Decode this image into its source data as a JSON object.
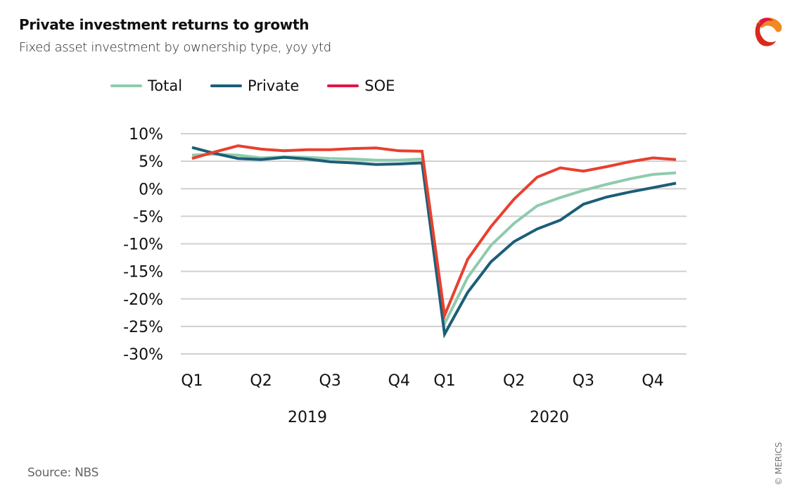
{
  "header": {
    "title": "Private investment returns to growth",
    "subtitle": "Fixed asset investment by ownership type, yoy ytd"
  },
  "footer": {
    "source": "Source: NBS",
    "copyright": "© MERICS"
  },
  "logo": {
    "icon": "merics-logo-icon"
  },
  "chart_data": {
    "type": "line",
    "title": "Private investment returns to growth",
    "subtitle": "Fixed asset investment by ownership type, yoy ytd",
    "xlabel": "",
    "ylabel": "",
    "ylim": [
      -30,
      10
    ],
    "yticks": [
      10,
      5,
      0,
      -5,
      -10,
      -15,
      -20,
      -25,
      -30
    ],
    "ytick_labels": [
      "10%",
      "5%",
      "0%",
      "-5%",
      "-10%",
      "-15%",
      "-20%",
      "-25%",
      "-30%"
    ],
    "grid": true,
    "legend_position": "top",
    "x": [
      "2019-02",
      "2019-03",
      "2019-04",
      "2019-05",
      "2019-06",
      "2019-07",
      "2019-08",
      "2019-09",
      "2019-10",
      "2019-11",
      "2019-12",
      "2020-02",
      "2020-03",
      "2020-04",
      "2020-05",
      "2020-06",
      "2020-07",
      "2020-08",
      "2020-09",
      "2020-10",
      "2020-11",
      "2020-12"
    ],
    "xtick_labels": [
      {
        "label": "Q1",
        "index": 0
      },
      {
        "label": "Q2",
        "index": 3
      },
      {
        "label": "Q3",
        "index": 6
      },
      {
        "label": "Q4",
        "index": 9
      },
      {
        "label": "Q1",
        "index": 11
      },
      {
        "label": "Q2",
        "index": 14
      },
      {
        "label": "Q3",
        "index": 17
      },
      {
        "label": "Q4",
        "index": 20
      }
    ],
    "year_labels": [
      {
        "label": "2019",
        "center_index": 5
      },
      {
        "label": "2020",
        "center_index": 16
      }
    ],
    "series": [
      {
        "name": "Total",
        "color": "#8ecbae",
        "values": [
          6.1,
          6.3,
          6.1,
          5.6,
          5.8,
          5.7,
          5.5,
          5.4,
          5.2,
          5.2,
          5.4,
          -24.5,
          -16.1,
          -10.3,
          -6.3,
          -3.1,
          -1.6,
          -0.3,
          0.8,
          1.8,
          2.6,
          2.9
        ]
      },
      {
        "name": "Private",
        "color": "#1b5e78",
        "values": [
          7.5,
          6.4,
          5.5,
          5.3,
          5.7,
          5.4,
          4.9,
          4.7,
          4.4,
          4.5,
          4.7,
          -26.4,
          -18.8,
          -13.3,
          -9.6,
          -7.3,
          -5.7,
          -2.8,
          -1.5,
          -0.6,
          0.2,
          1.0
        ]
      },
      {
        "name": "SOE",
        "color": "#e8402e",
        "legend_color": "#e4144a",
        "values": [
          5.5,
          6.7,
          7.8,
          7.2,
          6.9,
          7.1,
          7.1,
          7.3,
          7.4,
          6.9,
          6.8,
          -23.0,
          -12.8,
          -6.9,
          -1.9,
          2.1,
          3.8,
          3.2,
          4.0,
          4.9,
          5.6,
          5.3
        ]
      }
    ]
  }
}
